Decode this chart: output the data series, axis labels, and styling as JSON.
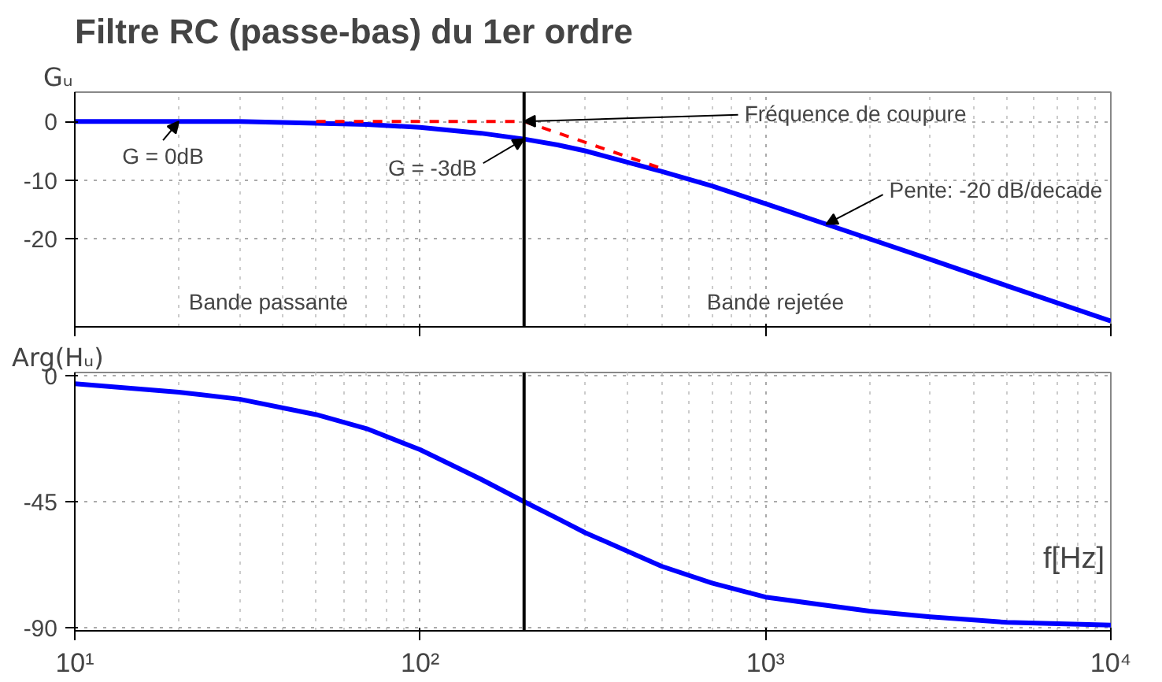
{
  "chart_data": [
    {
      "type": "line",
      "title": "Filtre RC (passe-bas) du 1er ordre",
      "ylabel": "Gᵤ",
      "log": "x",
      "xlim": [
        10,
        10000
      ],
      "ylim": [
        -35,
        5
      ],
      "xticks": [
        {
          "value": 10,
          "label": null
        },
        {
          "value": 100,
          "label": null
        },
        {
          "value": 1000,
          "label": null
        },
        {
          "value": 10000,
          "label": null
        }
      ],
      "yticks": [
        0,
        -10,
        -20
      ],
      "grid": true,
      "tick_labels": "y",
      "series": [
        {
          "color": "#0000ff",
          "x": [
            10,
            20,
            30,
            50,
            70,
            100,
            150,
            200,
            250,
            300,
            500,
            700,
            1000,
            2000,
            3000,
            5000,
            10000
          ],
          "values": [
            0,
            0,
            0,
            -0.3,
            -0.5,
            -1,
            -2,
            -3,
            -4,
            -5,
            -8.5,
            -11,
            -14,
            -20,
            -23.5,
            -28,
            -34
          ]
        },
        {
          "color": "#ff0000",
          "line_style": "dashed",
          "x": [
            50,
            200,
            500
          ],
          "values": [
            0,
            0,
            -8
          ]
        }
      ],
      "ref_lines": [
        {
          "axis": "x",
          "value": 200,
          "color": "#000000"
        }
      ],
      "annotations": [
        {
          "text": "Fréquence de coupure",
          "x": 200,
          "y": 0
        },
        {
          "text": "G = 0dB",
          "x": 20,
          "y": 0
        },
        {
          "text": "G = -3dB",
          "x": 200,
          "y": -3
        },
        {
          "text": "Pente: -20 dB/decade",
          "x": 1500,
          "y": -17.5
        },
        "Bande passante",
        "Bande rejetée"
      ]
    },
    {
      "type": "line",
      "ylabel": "Arg(Hᵤ)",
      "xlabel": "f[Hz]",
      "log": "x",
      "xlim": [
        10,
        10000
      ],
      "ylim": [
        -91,
        1
      ],
      "xticks": [
        {
          "value": 10,
          "label": "10¹"
        },
        {
          "value": 100,
          "label": "10²"
        },
        {
          "value": 1000,
          "label": "10³"
        },
        {
          "value": 10000,
          "label": "10⁴"
        }
      ],
      "yticks": [
        0,
        -45,
        -90
      ],
      "grid": true,
      "series": [
        {
          "color": "#0000ff",
          "x": [
            10,
            20,
            30,
            50,
            70,
            100,
            150,
            200,
            250,
            300,
            500,
            700,
            1000,
            2000,
            3000,
            5000,
            10000
          ],
          "values": [
            -3,
            -6,
            -8.5,
            -14,
            -19,
            -26.5,
            -37,
            -45,
            -51,
            -56,
            -68,
            -74,
            -79,
            -84,
            -86,
            -88,
            -89
          ]
        }
      ],
      "ref_lines": [
        {
          "axis": "x",
          "value": 200,
          "color": "#000000"
        }
      ]
    }
  ]
}
